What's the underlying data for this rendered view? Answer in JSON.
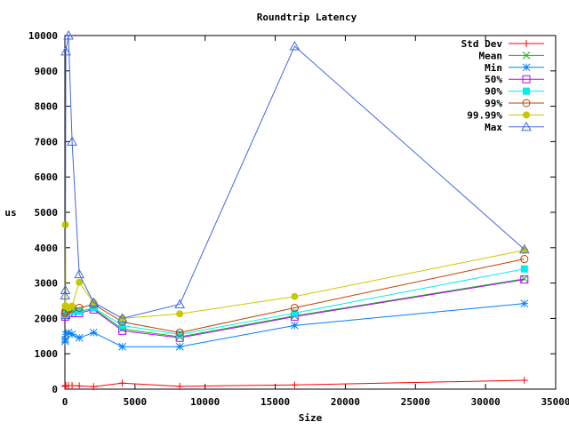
{
  "chart_data": {
    "type": "line",
    "title": "Roundtrip Latency",
    "xlabel": "Size",
    "ylabel": "us",
    "xlim": [
      0,
      35000
    ],
    "ylim": [
      0,
      10000
    ],
    "xticks": [
      0,
      5000,
      10000,
      15000,
      20000,
      25000,
      30000,
      35000
    ],
    "yticks": [
      0,
      1000,
      2000,
      3000,
      4000,
      5000,
      6000,
      7000,
      8000,
      9000,
      10000
    ],
    "grid": false,
    "legend_position": "top-right",
    "x": [
      16,
      32,
      64,
      256,
      512,
      1024,
      2048,
      4096,
      8192,
      16384,
      32768
    ],
    "series": [
      {
        "name": "Std Dev",
        "color": "#ff0000",
        "marker": "plus",
        "values": [
          80,
          90,
          100,
          100,
          100,
          90,
          70,
          170,
          80,
          120,
          250
        ]
      },
      {
        "name": "Mean",
        "color": "#00c000",
        "marker": "cross",
        "values": [
          2080,
          2120,
          2130,
          2180,
          2190,
          2200,
          2280,
          1700,
          1480,
          2070,
          3120
        ]
      },
      {
        "name": "Min",
        "color": "#0080ff",
        "marker": "star",
        "values": [
          1350,
          1400,
          1550,
          1600,
          1550,
          1450,
          1600,
          1200,
          1200,
          1800,
          2420
        ]
      },
      {
        "name": "50%",
        "color": "#c000ff",
        "marker": "square-open",
        "values": [
          2050,
          2100,
          2100,
          2150,
          2150,
          2150,
          2250,
          1650,
          1450,
          2050,
          3100
        ]
      },
      {
        "name": "90%",
        "color": "#00eeee",
        "marker": "square-filled",
        "values": [
          2100,
          2150,
          2150,
          2200,
          2200,
          2200,
          2300,
          1800,
          1550,
          2150,
          3400
        ]
      },
      {
        "name": "99%",
        "color": "#c04000",
        "marker": "circle-open",
        "values": [
          2150,
          2200,
          2200,
          2250,
          2280,
          2300,
          2400,
          1900,
          1600,
          2300,
          3680
        ]
      },
      {
        "name": "99.99%",
        "color": "#c8c800",
        "marker": "circle-filled",
        "values": [
          2350,
          4650,
          2350,
          2300,
          2350,
          3020,
          2450,
          2000,
          2130,
          2620,
          3930
        ]
      },
      {
        "name": "Max",
        "color": "#4169e1",
        "marker": "triangle-open",
        "values": [
          2650,
          2800,
          9550,
          10000,
          7000,
          3250,
          2450,
          2000,
          2400,
          9700,
          3950
        ]
      }
    ]
  }
}
